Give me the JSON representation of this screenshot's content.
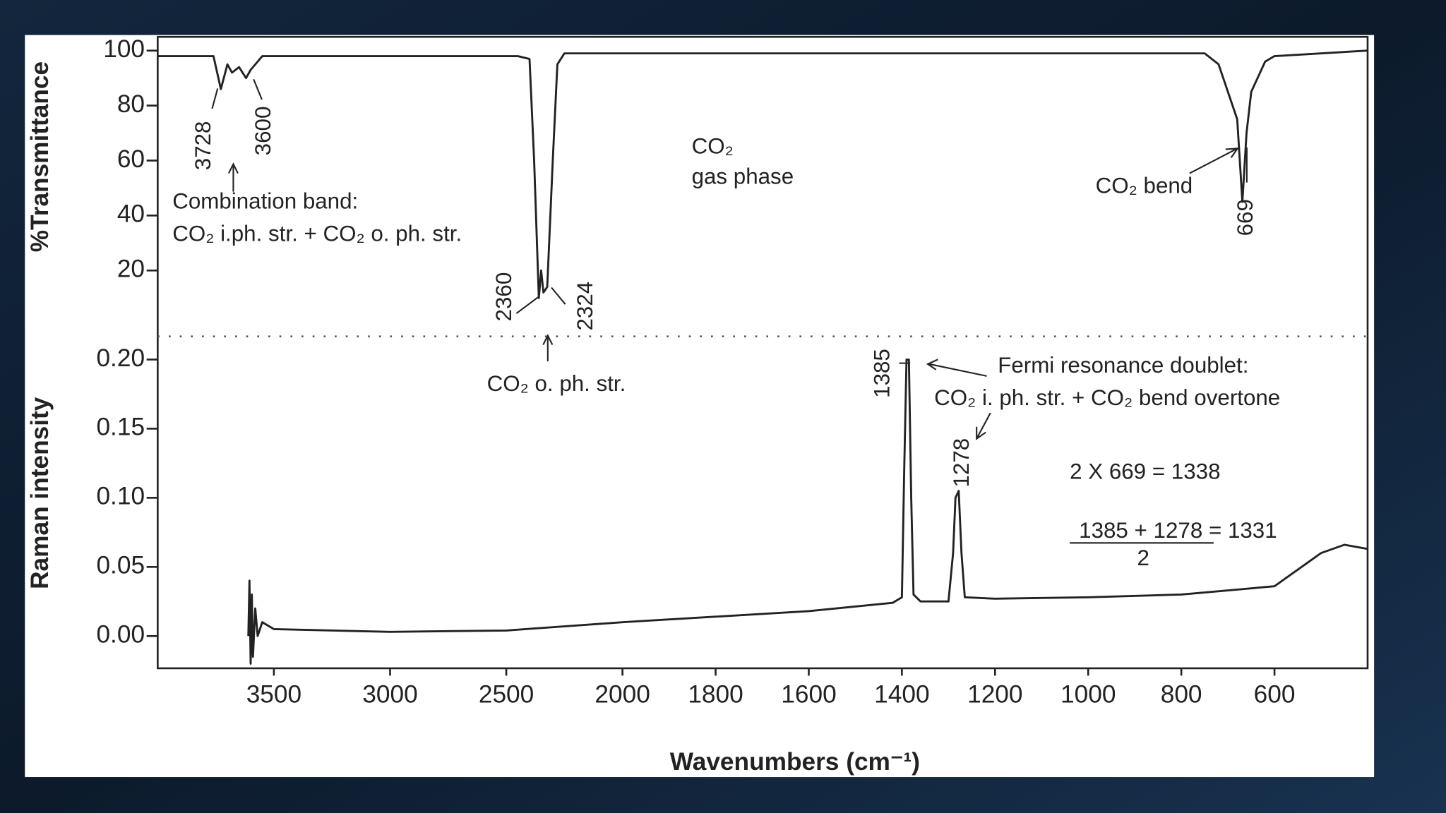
{
  "x_axis": {
    "label": "Wavenumbers (cm⁻¹)",
    "xlim": [
      4000,
      400
    ],
    "xticks": [
      3500,
      3000,
      2500,
      2000,
      1800,
      1600,
      1400,
      1200,
      1000,
      800,
      600
    ]
  },
  "chart_data": [
    {
      "type": "line",
      "y_label": "%Transmittance",
      "color": "#222222",
      "ylim": [
        -4,
        105
      ],
      "yticks": [
        20,
        40,
        60,
        80,
        100
      ],
      "x": [
        4000,
        3760,
        3728,
        3700,
        3680,
        3650,
        3620,
        3600,
        3550,
        3000,
        2450,
        2400,
        2380,
        2360,
        2350,
        2340,
        2324,
        2300,
        2280,
        2250,
        2000,
        750,
        720,
        700,
        680,
        669,
        660,
        650,
        620,
        600,
        400
      ],
      "values": [
        98,
        98,
        86,
        95,
        92,
        94,
        90,
        93,
        98,
        98,
        98,
        97,
        60,
        10,
        20,
        12,
        14,
        60,
        95,
        99,
        99,
        99,
        95,
        85,
        75,
        45,
        70,
        85,
        96,
        98,
        100
      ],
      "annotations": [
        "3728",
        "3600",
        "Combination band:",
        "CO₂ i.ph. str. + CO₂ o. ph. str.",
        "2360",
        "2324",
        "CO₂ o. ph. str.",
        "CO₂",
        "gas phase",
        "CO₂ bend",
        "669"
      ]
    },
    {
      "type": "line",
      "y_label": "Raman intensity",
      "color": "#222222",
      "ylim": [
        -0.0233,
        0.2167
      ],
      "yticks": [
        {
          "value": 0,
          "label": "0.00"
        },
        0.05,
        {
          "value": 0.1,
          "label": "0.10"
        },
        0.15,
        {
          "value": 0.2,
          "label": "0.20"
        }
      ],
      "x": [
        3610,
        3605,
        3600,
        3595,
        3590,
        3580,
        3570,
        3550,
        3500,
        3000,
        2500,
        2000,
        1600,
        1420,
        1400,
        1395,
        1390,
        1385,
        1380,
        1375,
        1360,
        1300,
        1290,
        1285,
        1278,
        1272,
        1265,
        1200,
        1000,
        800,
        600,
        500,
        450,
        400
      ],
      "values": [
        0.0,
        0.04,
        -0.02,
        0.03,
        -0.015,
        0.02,
        0.0,
        0.01,
        0.005,
        0.003,
        0.004,
        0.01,
        0.018,
        0.024,
        0.028,
        0.12,
        0.2,
        0.2,
        0.1,
        0.03,
        0.025,
        0.025,
        0.06,
        0.1,
        0.105,
        0.06,
        0.028,
        0.027,
        0.028,
        0.03,
        0.036,
        0.06,
        0.066,
        0.063
      ],
      "annotations": [
        "1385",
        "1278",
        "Fermi resonance doublet:",
        "CO₂ i. ph. str. + CO₂ bend overtone",
        "2 X 669 = 1338",
        "1385 + 1278 = 1331",
        "2"
      ]
    }
  ]
}
